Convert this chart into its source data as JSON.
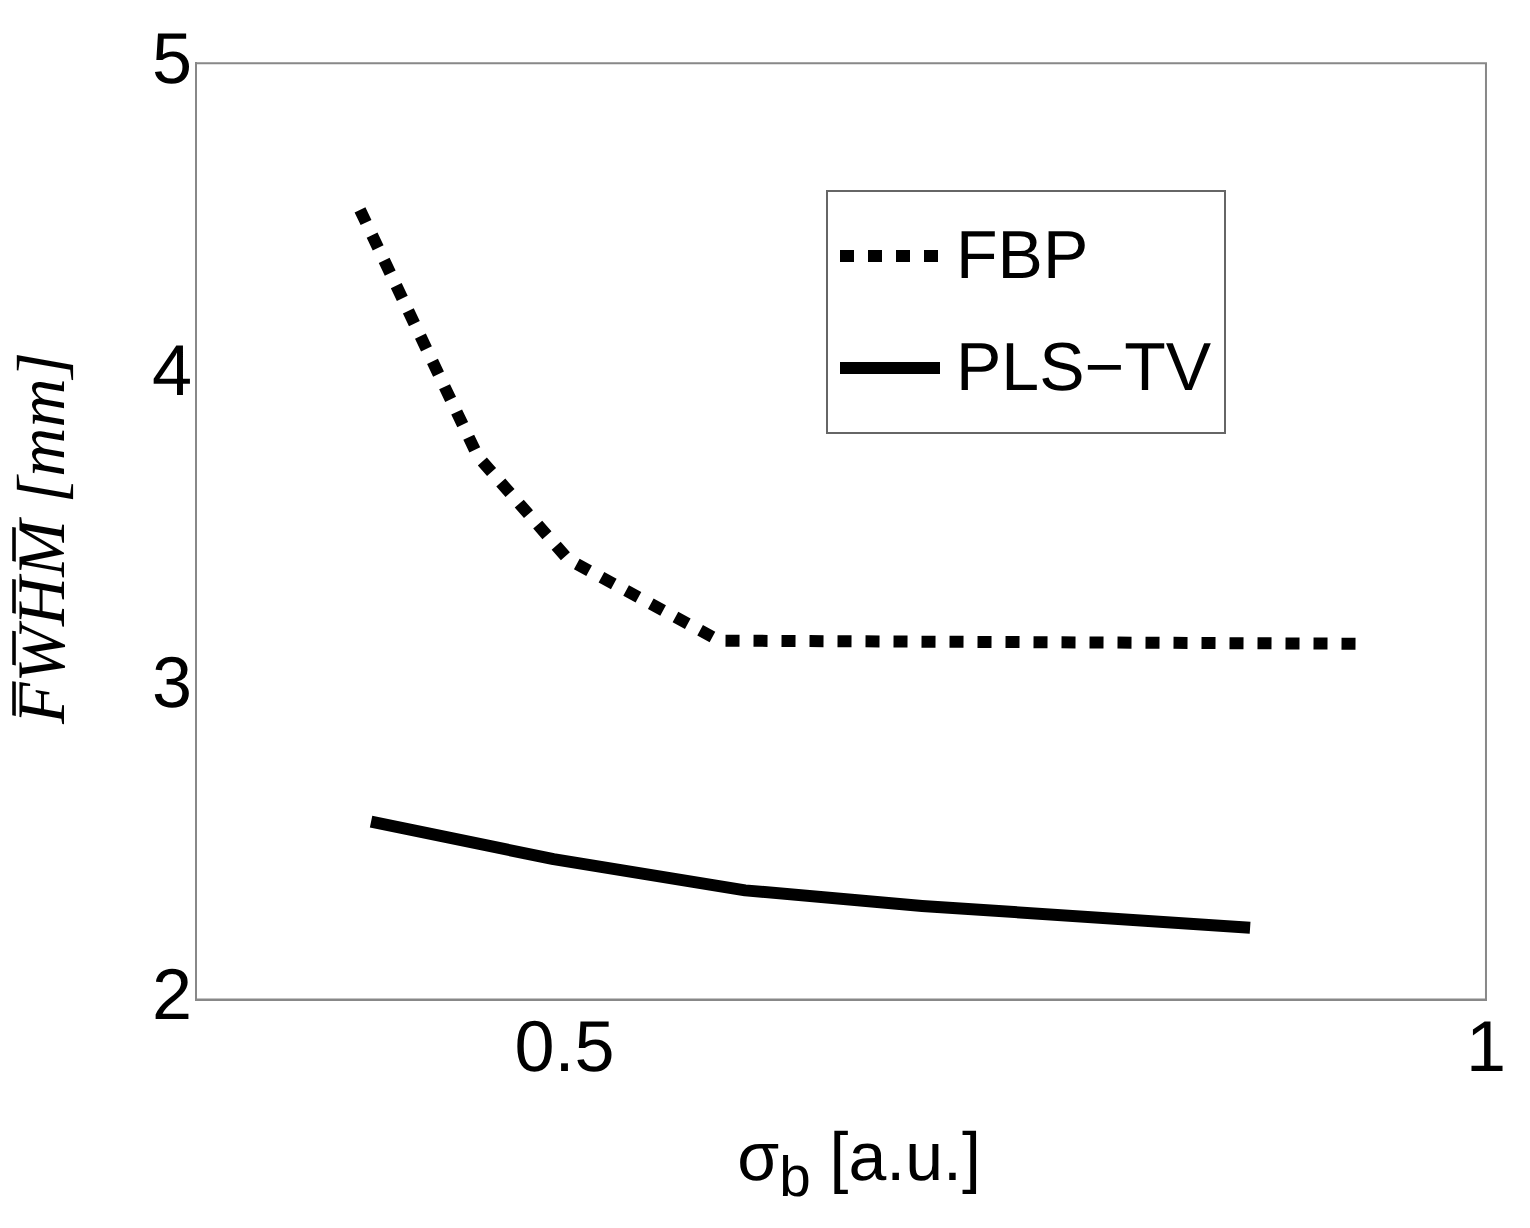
{
  "chart_data": {
    "type": "line",
    "xlabel": "σ$_{b}$ [a.u.]",
    "ylabel": "F̅W̅H̅M̅ [mm]",
    "xlim": [
      0.3,
      1
    ],
    "xticks": [
      0.5,
      1
    ],
    "ylim": [
      2,
      5
    ],
    "yticks": [
      2,
      3,
      4,
      5
    ],
    "legend": "top right",
    "grid": false,
    "series": [
      {
        "name": "FBP",
        "color": "#000000",
        "line_style": "dotted",
        "x": [
          0.389,
          0.453,
          0.502,
          0.584,
          0.93
        ],
        "values": [
          4.53,
          3.74,
          3.41,
          3.15,
          3.14
        ]
      },
      {
        "name": "PLS−TV",
        "color": "#000000",
        "line_style": "solid",
        "x": [
          0.395,
          0.494,
          0.598,
          0.694,
          0.872
        ],
        "values": [
          2.57,
          2.45,
          2.35,
          2.3,
          2.23
        ]
      }
    ]
  }
}
